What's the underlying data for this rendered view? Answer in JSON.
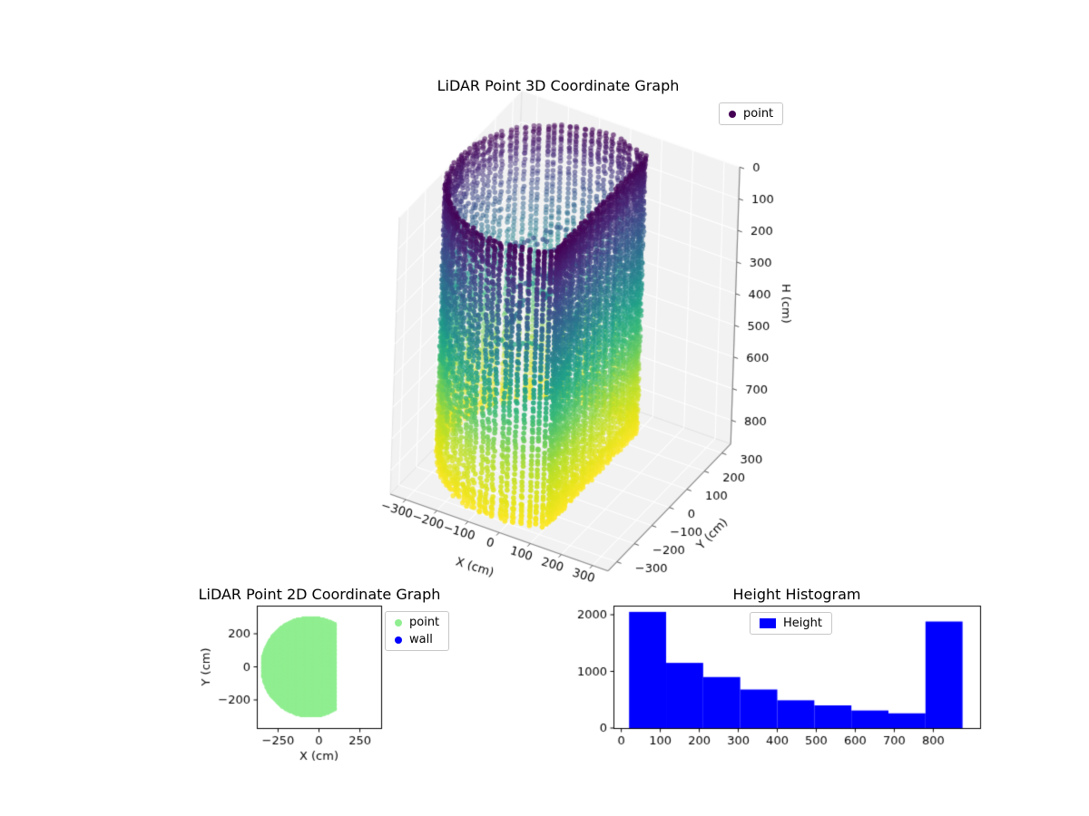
{
  "figure": {
    "background": "#ffffff"
  },
  "chart_data": [
    {
      "type": "scatter",
      "projection": "3d",
      "title": "LiDAR Point 3D Coordinate Graph",
      "xlabel": "X (cm)",
      "ylabel": "Y (cm)",
      "zlabel": "H (cm)",
      "xticks": [
        -300,
        -200,
        -100,
        0,
        100,
        200,
        300
      ],
      "yticks": [
        -300,
        -200,
        -100,
        0,
        100,
        200,
        300
      ],
      "zticks": [
        0,
        100,
        200,
        300,
        400,
        500,
        600,
        700,
        800
      ],
      "xlim": [
        -350,
        350
      ],
      "ylim": [
        -350,
        350
      ],
      "zlim": [
        0,
        875
      ],
      "zaxis_inverted": true,
      "grid": true,
      "legend": [
        {
          "label": "point",
          "color": "#440154"
        }
      ],
      "legend_position": "upper right",
      "colormap": "viridis",
      "colormap_stops": [
        [
          0.0,
          "#440154"
        ],
        [
          0.1,
          "#482878"
        ],
        [
          0.2,
          "#3e4a89"
        ],
        [
          0.3,
          "#31688e"
        ],
        [
          0.4,
          "#26828e"
        ],
        [
          0.5,
          "#1f9e89"
        ],
        [
          0.6,
          "#35b779"
        ],
        [
          0.7,
          "#6dcd59"
        ],
        [
          0.8,
          "#b4de2c"
        ],
        [
          0.9,
          "#dce319"
        ],
        [
          1.0,
          "#fde725"
        ]
      ],
      "point_cloud": {
        "shape": "clipped-cylinder",
        "center_x": -50,
        "center_y": 0,
        "radius": 300,
        "clip_x": 100,
        "height_min": 0,
        "height_max": 875,
        "columns": 88,
        "color_by": "height",
        "dense_bands": [
          [
            0,
            100
          ],
          [
            800,
            875
          ]
        ]
      }
    },
    {
      "type": "scatter",
      "projection": "2d",
      "title": "LiDAR Point 2D Coordinate Graph",
      "xlabel": "X (cm)",
      "ylabel": "Y (cm)",
      "xticks": [
        -250,
        0,
        250
      ],
      "yticks": [
        -200,
        0,
        200
      ],
      "xlim": [
        -380,
        380
      ],
      "ylim": [
        -370,
        370
      ],
      "legend": [
        {
          "label": "point",
          "color": "#90ee90"
        },
        {
          "label": "wall",
          "color": "#0000ff"
        }
      ],
      "legend_position": "outside right",
      "region": {
        "shape": "clipped-disk",
        "center_x": -50,
        "center_y": 0,
        "radius": 300,
        "clip_x": 100,
        "color": "#90ee90"
      }
    },
    {
      "type": "bar",
      "title": "Height Histogram",
      "xlabel": "",
      "ylabel": "",
      "legend": [
        {
          "label": "Height",
          "color": "#0000ff"
        }
      ],
      "legend_position": "upper center",
      "bin_edges": [
        20,
        115,
        210,
        305,
        400,
        495,
        590,
        685,
        780,
        875
      ],
      "counts": [
        2050,
        1150,
        900,
        680,
        490,
        400,
        310,
        260,
        1880
      ],
      "xticks": [
        0,
        100,
        200,
        300,
        400,
        500,
        600,
        700,
        800
      ],
      "yticks": [
        0,
        1000,
        2000
      ],
      "xlim": [
        -20,
        920
      ],
      "ylim": [
        0,
        2160
      ],
      "bar_color": "#0000ff"
    }
  ]
}
